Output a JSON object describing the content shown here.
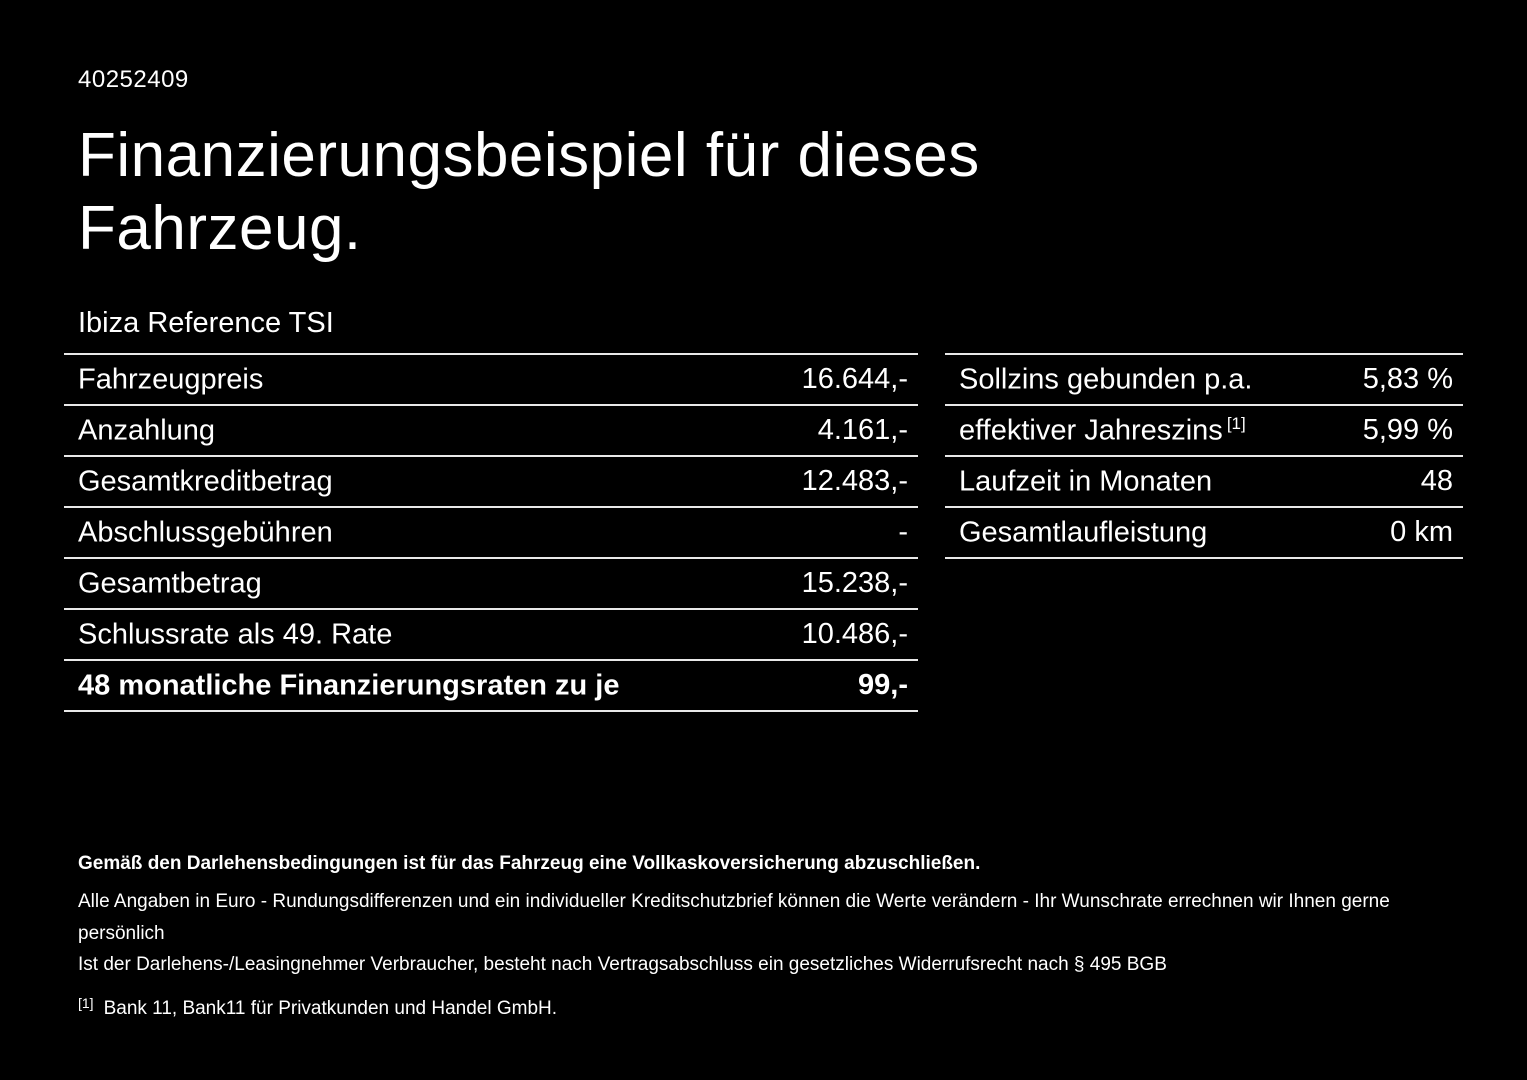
{
  "page": {
    "reference_id": "40252409",
    "title": "Finanzierungsbeispiel für dieses Fahrzeug.",
    "vehicle_name": "Ibiza Reference TSI"
  },
  "financing_table": {
    "rows": [
      {
        "label": "Fahrzeugpreis",
        "value": "16.644,-"
      },
      {
        "label": "Anzahlung",
        "value": "4.161,-"
      },
      {
        "label": "Gesamtkreditbetrag",
        "value": "12.483,-"
      },
      {
        "label": "Abschlussgebühren",
        "value": "-"
      },
      {
        "label": "Gesamtbetrag",
        "value": "15.238,-"
      },
      {
        "label": "Schlussrate als 49. Rate",
        "value": "10.486,-"
      },
      {
        "label": "48 monatliche Finanzierungsraten zu je",
        "value": "99,-",
        "bold": true
      }
    ]
  },
  "conditions_table": {
    "rows": [
      {
        "label": "Sollzins gebunden p.a.",
        "value": "5,83 %"
      },
      {
        "label": "effektiver Jahreszins",
        "sup": "[1]",
        "value": "5,99 %"
      },
      {
        "label": "Laufzeit in Monaten",
        "value": "48"
      },
      {
        "label": "Gesamtlaufleistung",
        "value": "0 km"
      }
    ]
  },
  "footer": {
    "insurance_note": "Gemäß den Darlehensbedingungen ist für das Fahrzeug eine Vollkaskoversicherung abzuschließen.",
    "disclaimer_line1": "Alle Angaben in Euro - Rundungsdifferenzen und ein individueller Kreditschutzbrief können die Werte verändern - Ihr Wunschrate errechnen wir Ihnen gerne persönlich",
    "disclaimer_line2": "Ist der Darlehens-/Leasingnehmer Verbraucher, besteht nach Vertragsabschluss ein gesetzliches Widerrufsrecht nach § 495 BGB",
    "footnote_marker": "[1]",
    "footnote_text": "Bank 11, Bank11 für Privatkunden und Handel GmbH."
  },
  "colors": {
    "background": "#000000",
    "text": "#ffffff",
    "divider": "#e8e8e8"
  }
}
